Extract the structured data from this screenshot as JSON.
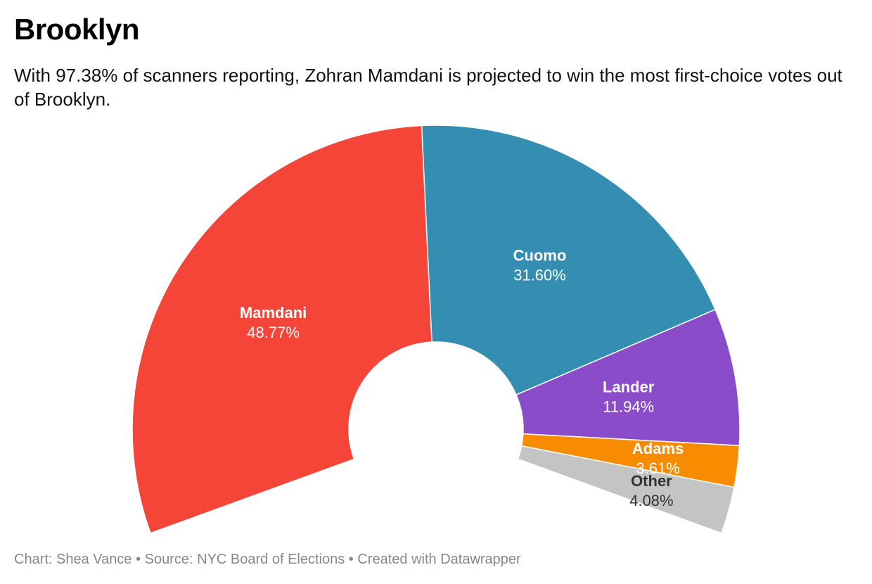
{
  "header": {
    "title": "Brooklyn",
    "subtitle": "With 97.38% of scanners reporting, Zohran Mamdani is projected to win the most first-choice votes out of Brooklyn."
  },
  "chart_data": {
    "type": "pie",
    "variant": "semi-donut (arc spans ~220°)",
    "slices": [
      {
        "name": "Mamdani",
        "value": 48.77,
        "label": "48.77%",
        "color": "#f44538",
        "text_color": "#ffffff"
      },
      {
        "name": "Cuomo",
        "value": 31.6,
        "label": "31.60%",
        "color": "#338eb2",
        "text_color": "#ffffff"
      },
      {
        "name": "Lander",
        "value": 11.94,
        "label": "11.94%",
        "color": "#8a4cc8",
        "text_color": "#ffffff"
      },
      {
        "name": "Adams",
        "value": 3.61,
        "label": "3.61%",
        "color": "#f88c00",
        "text_color": "#ffffff"
      },
      {
        "name": "Other",
        "value": 4.08,
        "label": "4.08%",
        "color": "#c4c4c4",
        "text_color": "#333333"
      }
    ]
  },
  "footer": {
    "credit": "Chart: Shea Vance",
    "separator": " • ",
    "source": "Source: NYC Board of Elections",
    "tool": "Created with Datawrapper"
  }
}
